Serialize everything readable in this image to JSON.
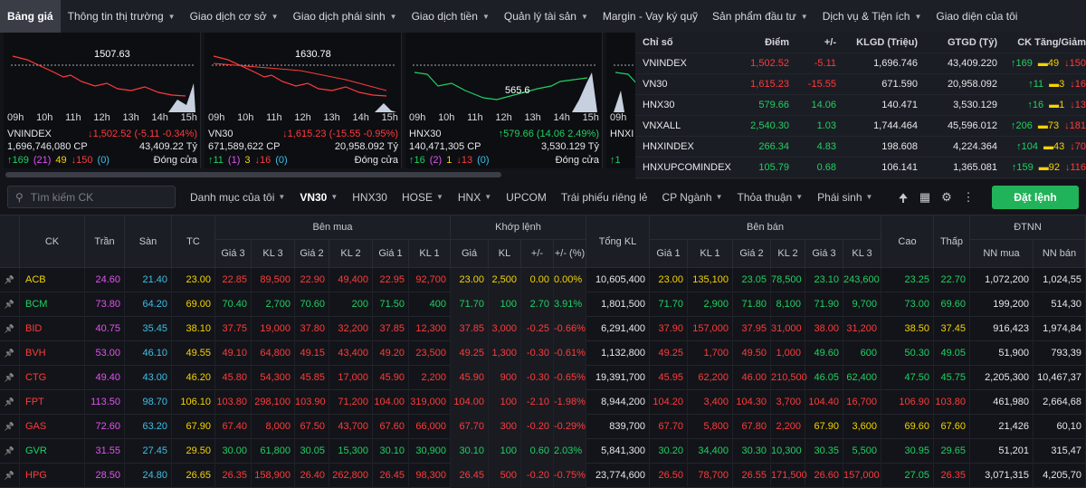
{
  "nav": {
    "items": [
      {
        "label": "Bảng giá",
        "active": true,
        "chev": false
      },
      {
        "label": "Thông tin thị trường",
        "chev": true
      },
      {
        "label": "Giao dịch cơ sở",
        "chev": true
      },
      {
        "label": "Giao dịch phái sinh",
        "chev": true
      },
      {
        "label": "Giao dịch tiền",
        "chev": true
      },
      {
        "label": "Quản lý tài sản",
        "chev": true
      },
      {
        "label": "Margin - Vay ký quỹ",
        "chev": false
      },
      {
        "label": "Sản phẩm đầu tư",
        "chev": true
      },
      {
        "label": "Dịch vụ & Tiện ích",
        "chev": true
      },
      {
        "label": "Giao diện của tôi",
        "chev": false
      }
    ]
  },
  "charts": [
    {
      "ref_value": "1507.63",
      "name": "VNINDEX",
      "value": "↓1,502.52",
      "change": "(-5.11 -0.34%)",
      "volume": "1,696,746,080 CP",
      "value_total": "43,409.22 Tỷ",
      "up": "↑169",
      "ce": "(21)",
      "rf": "49",
      "dn": "↓150",
      "fl": "(0)",
      "status": "Đóng cửa",
      "trend": "down"
    },
    {
      "ref_value": "1630.78",
      "name": "VN30",
      "value": "↓1,615.23",
      "change": "(-15.55 -0.95%)",
      "volume": "671,589,622 CP",
      "value_total": "20,958.092 Tỷ",
      "up": "↑11",
      "ce": "(1)",
      "rf": "3",
      "dn": "↓16",
      "fl": "(0)",
      "status": "Đóng cửa",
      "trend": "down"
    },
    {
      "ref_value": "565.6",
      "name": "HNX30",
      "value": "↑579.66",
      "change": "(14.06 2.49%)",
      "volume": "140,471,305 CP",
      "value_total": "3,530.129 Tỷ",
      "up": "↑16",
      "ce": "(2)",
      "rf": "1",
      "dn": "↓13",
      "fl": "(0)",
      "status": "Đóng cửa",
      "trend": "up"
    },
    {
      "ref_value": "",
      "name": "HNXI",
      "value": "",
      "change": "",
      "volume": "",
      "value_total": "",
      "up": "↑1",
      "ce": "",
      "rf": "",
      "dn": "",
      "fl": "",
      "status": "",
      "trend": "up"
    }
  ],
  "chart_hours": [
    "09h",
    "10h",
    "11h",
    "12h",
    "13h",
    "14h",
    "15h"
  ],
  "index_table": {
    "headers": [
      "Chỉ số",
      "Điểm",
      "+/-",
      "KLGD (Triệu)",
      "GTGD (Tỷ)",
      "CK Tăng/Giảm"
    ],
    "rows": [
      {
        "name": "VNINDEX",
        "point": "1,502.52",
        "chg": "-5.11",
        "vol": "1,696.746",
        "val": "43,409.220",
        "up": "169",
        "rf": "49",
        "dn": "150",
        "dir": "dn"
      },
      {
        "name": "VN30",
        "point": "1,615.23",
        "chg": "-15.55",
        "vol": "671.590",
        "val": "20,958.092",
        "up": "11",
        "rf": "3",
        "dn": "16",
        "dir": "dn"
      },
      {
        "name": "HNX30",
        "point": "579.66",
        "chg": "14.06",
        "vol": "140.471",
        "val": "3,530.129",
        "up": "16",
        "rf": "1",
        "dn": "13",
        "dir": "up"
      },
      {
        "name": "VNXALL",
        "point": "2,540.30",
        "chg": "1.03",
        "vol": "1,744.464",
        "val": "45,596.012",
        "up": "206",
        "rf": "73",
        "dn": "181",
        "dir": "up"
      },
      {
        "name": "HNXINDEX",
        "point": "266.34",
        "chg": "4.83",
        "vol": "198.608",
        "val": "4,224.364",
        "up": "104",
        "rf": "43",
        "dn": "70",
        "dir": "up"
      },
      {
        "name": "HNXUPCOMINDEX",
        "point": "105.79",
        "chg": "0.68",
        "vol": "106.141",
        "val": "1,365.081",
        "up": "159",
        "rf": "92",
        "dn": "116",
        "dir": "up"
      }
    ]
  },
  "toolbar": {
    "search_placeholder": "Tìm kiếm CK",
    "tabs": [
      {
        "label": "Danh mục của tôi",
        "chev": true
      },
      {
        "label": "VN30",
        "chev": true,
        "active": true
      },
      {
        "label": "HNX30",
        "chev": false
      },
      {
        "label": "HOSE",
        "chev": true
      },
      {
        "label": "HNX",
        "chev": true
      },
      {
        "label": "UPCOM",
        "chev": false
      },
      {
        "label": "Trái phiếu riêng lẻ",
        "chev": false
      },
      {
        "label": "CP Ngành",
        "chev": true
      },
      {
        "label": "Thỏa thuận",
        "chev": true
      },
      {
        "label": "Phái sinh",
        "chev": true
      }
    ],
    "order_label": "Đặt lệnh"
  },
  "table": {
    "groups": {
      "buy": "Bên mua",
      "match": "Khớp lệnh",
      "sell": "Bên bán",
      "foreign": "ĐTNN"
    },
    "cols": {
      "ck": "CK",
      "ceil": "Trần",
      "floor": "Sàn",
      "ref": "TC",
      "b3": "Giá 3",
      "bk3": "KL 3",
      "b2": "Giá 2",
      "bk2": "KL 2",
      "b1": "Giá 1",
      "bk1": "KL 1",
      "mp": "Giá",
      "mk": "KL",
      "mc": "+/-",
      "mpct": "+/- (%)",
      "total": "Tổng KL",
      "s1": "Giá 1",
      "sk1": "KL 1",
      "s2": "Giá 2",
      "sk2": "KL 2",
      "s3": "Giá 3",
      "sk3": "KL 3",
      "high": "Cao",
      "low": "Thấp",
      "nnb": "NN mua",
      "nns": "NN bán"
    },
    "rows": [
      {
        "ck": "ACB",
        "c": "rf",
        "ceil": "24.60",
        "floor": "21.40",
        "ref": "23.00",
        "b3": "22.85",
        "bk3": "89,500",
        "b2": "22.90",
        "bk2": "49,400",
        "b1": "22.95",
        "bk1": "92,700",
        "mp": "23.00",
        "mk": "2,500",
        "mc": "0.00",
        "mpct": "0.00%",
        "total": "10,605,400",
        "s1": "23.00",
        "sk1": "135,100",
        "s2": "23.05",
        "sk2": "78,500",
        "s3": "23.10",
        "sk3": "243,600",
        "high": "23.25",
        "low": "22.70",
        "nnb": "1,072,200",
        "nns": "1,024,55",
        "cl": [
          "dn",
          "dn",
          "dn",
          "dn",
          "dn",
          "dn",
          "rf",
          "rf",
          "rf",
          "rf",
          "rf",
          "rf",
          "up",
          "up",
          "up",
          "up",
          "up",
          "up",
          "up",
          "dn"
        ]
      },
      {
        "ck": "BCM",
        "c": "up",
        "ceil": "73.80",
        "floor": "64.20",
        "ref": "69.00",
        "b3": "70.40",
        "bk3": "2,700",
        "b2": "70.60",
        "bk2": "200",
        "b1": "71.50",
        "bk1": "400",
        "mp": "71.70",
        "mk": "100",
        "mc": "2.70",
        "mpct": "3.91%",
        "total": "1,801,500",
        "s1": "71.70",
        "sk1": "2,900",
        "s2": "71.80",
        "sk2": "8,100",
        "s3": "71.90",
        "sk3": "9,700",
        "high": "73.00",
        "low": "69.60",
        "nnb": "199,200",
        "nns": "514,30",
        "cl": [
          "up",
          "up",
          "up",
          "up",
          "up",
          "up",
          "up",
          "up",
          "up",
          "up",
          "up",
          "up",
          "up",
          "up",
          "up",
          "up",
          "up",
          "up",
          "up",
          "up"
        ]
      },
      {
        "ck": "BID",
        "c": "dn",
        "ceil": "40.75",
        "floor": "35.45",
        "ref": "38.10",
        "b3": "37.75",
        "bk3": "19,000",
        "b2": "37.80",
        "bk2": "32,200",
        "b1": "37.85",
        "bk1": "12,300",
        "mp": "37.85",
        "mk": "3,000",
        "mc": "-0.25",
        "mpct": "-0.66%",
        "total": "6,291,400",
        "s1": "37.90",
        "sk1": "157,000",
        "s2": "37.95",
        "sk2": "31,000",
        "s3": "38.00",
        "sk3": "31,200",
        "high": "38.50",
        "low": "37.45",
        "nnb": "916,423",
        "nns": "1,974,84",
        "cl": [
          "dn",
          "dn",
          "dn",
          "dn",
          "dn",
          "dn",
          "dn",
          "dn",
          "dn",
          "dn",
          "dn",
          "dn",
          "dn",
          "dn",
          "dn",
          "dn",
          "rf",
          "rf",
          "up",
          "dn"
        ]
      },
      {
        "ck": "BVH",
        "c": "dn",
        "ceil": "53.00",
        "floor": "46.10",
        "ref": "49.55",
        "b3": "49.10",
        "bk3": "64,800",
        "b2": "49.15",
        "bk2": "43,400",
        "b1": "49.20",
        "bk1": "23,500",
        "mp": "49.25",
        "mk": "1,300",
        "mc": "-0.30",
        "mpct": "-0.61%",
        "total": "1,132,800",
        "s1": "49.25",
        "sk1": "1,700",
        "s2": "49.50",
        "sk2": "1,000",
        "s3": "49.60",
        "sk3": "600",
        "high": "50.30",
        "low": "49.05",
        "nnb": "51,900",
        "nns": "793,39",
        "cl": [
          "dn",
          "dn",
          "dn",
          "dn",
          "dn",
          "dn",
          "dn",
          "dn",
          "dn",
          "dn",
          "dn",
          "dn",
          "dn",
          "dn",
          "up",
          "up",
          "up",
          "up",
          "up",
          "dn"
        ]
      },
      {
        "ck": "CTG",
        "c": "dn",
        "ceil": "49.40",
        "floor": "43.00",
        "ref": "46.20",
        "b3": "45.80",
        "bk3": "54,300",
        "b2": "45.85",
        "bk2": "17,000",
        "b1": "45.90",
        "bk1": "2,200",
        "mp": "45.90",
        "mk": "900",
        "mc": "-0.30",
        "mpct": "-0.65%",
        "total": "19,391,700",
        "s1": "45.95",
        "sk1": "62,200",
        "s2": "46.00",
        "sk2": "210,500",
        "s3": "46.05",
        "sk3": "62,400",
        "high": "47.50",
        "low": "45.75",
        "nnb": "2,205,300",
        "nns": "10,467,37",
        "cl": [
          "dn",
          "dn",
          "dn",
          "dn",
          "dn",
          "dn",
          "dn",
          "dn",
          "dn",
          "dn",
          "dn",
          "dn",
          "dn",
          "dn",
          "up",
          "up",
          "up",
          "up",
          "up",
          "dn"
        ]
      },
      {
        "ck": "FPT",
        "c": "dn",
        "ceil": "113.50",
        "floor": "98.70",
        "ref": "106.10",
        "b3": "103.80",
        "bk3": "298,100",
        "b2": "103.90",
        "bk2": "71,200",
        "b1": "104.00",
        "bk1": "319,000",
        "mp": "104.00",
        "mk": "100",
        "mc": "-2.10",
        "mpct": "-1.98%",
        "total": "8,944,200",
        "s1": "104.20",
        "sk1": "3,400",
        "s2": "104.30",
        "sk2": "3,700",
        "s3": "104.40",
        "sk3": "16,700",
        "high": "106.90",
        "low": "103.80",
        "nnb": "461,980",
        "nns": "2,664,68",
        "cl": [
          "dn",
          "dn",
          "dn",
          "dn",
          "dn",
          "dn",
          "dn",
          "dn",
          "dn",
          "dn",
          "dn",
          "dn",
          "dn",
          "dn",
          "dn",
          "dn",
          "dn",
          "dn",
          "up",
          "dn"
        ]
      },
      {
        "ck": "GAS",
        "c": "dn",
        "ceil": "72.60",
        "floor": "63.20",
        "ref": "67.90",
        "b3": "67.40",
        "bk3": "8,000",
        "b2": "67.50",
        "bk2": "43,700",
        "b1": "67.60",
        "bk1": "66,000",
        "mp": "67.70",
        "mk": "300",
        "mc": "-0.20",
        "mpct": "-0.29%",
        "total": "839,700",
        "s1": "67.70",
        "sk1": "5,800",
        "s2": "67.80",
        "sk2": "2,200",
        "s3": "67.90",
        "sk3": "3,600",
        "high": "69.60",
        "low": "67.60",
        "nnb": "21,426",
        "nns": "60,10",
        "cl": [
          "dn",
          "dn",
          "dn",
          "dn",
          "dn",
          "dn",
          "dn",
          "dn",
          "dn",
          "dn",
          "dn",
          "dn",
          "dn",
          "dn",
          "rf",
          "rf",
          "rf",
          "rf",
          "up",
          "dn"
        ]
      },
      {
        "ck": "GVR",
        "c": "up",
        "ceil": "31.55",
        "floor": "27.45",
        "ref": "29.50",
        "b3": "30.00",
        "bk3": "61,800",
        "b2": "30.05",
        "bk2": "15,300",
        "b1": "30.10",
        "bk1": "30,900",
        "mp": "30.10",
        "mk": "100",
        "mc": "0.60",
        "mpct": "2.03%",
        "total": "5,841,300",
        "s1": "30.20",
        "sk1": "34,400",
        "s2": "30.30",
        "sk2": "10,300",
        "s3": "30.35",
        "sk3": "5,500",
        "high": "30.95",
        "low": "29.65",
        "nnb": "51,201",
        "nns": "315,47",
        "cl": [
          "up",
          "up",
          "up",
          "up",
          "up",
          "up",
          "up",
          "up",
          "up",
          "up",
          "up",
          "up",
          "up",
          "up",
          "up",
          "up",
          "up",
          "up",
          "up",
          "up"
        ]
      },
      {
        "ck": "HPG",
        "c": "dn",
        "ceil": "28.50",
        "floor": "24.80",
        "ref": "26.65",
        "b3": "26.35",
        "bk3": "158,900",
        "b2": "26.40",
        "bk2": "262,800",
        "b1": "26.45",
        "bk1": "98,300",
        "mp": "26.45",
        "mk": "500",
        "mc": "-0.20",
        "mpct": "-0.75%",
        "total": "23,774,600",
        "s1": "26.50",
        "sk1": "78,700",
        "s2": "26.55",
        "sk2": "171,500",
        "s3": "26.60",
        "sk3": "157,000",
        "high": "27.05",
        "low": "26.35",
        "nnb": "3,071,315",
        "nns": "4,205,70",
        "cl": [
          "dn",
          "dn",
          "dn",
          "dn",
          "dn",
          "dn",
          "dn",
          "dn",
          "dn",
          "dn",
          "dn",
          "dn",
          "dn",
          "dn",
          "dn",
          "dn",
          "up",
          "dn",
          "up",
          "dn"
        ]
      }
    ]
  }
}
